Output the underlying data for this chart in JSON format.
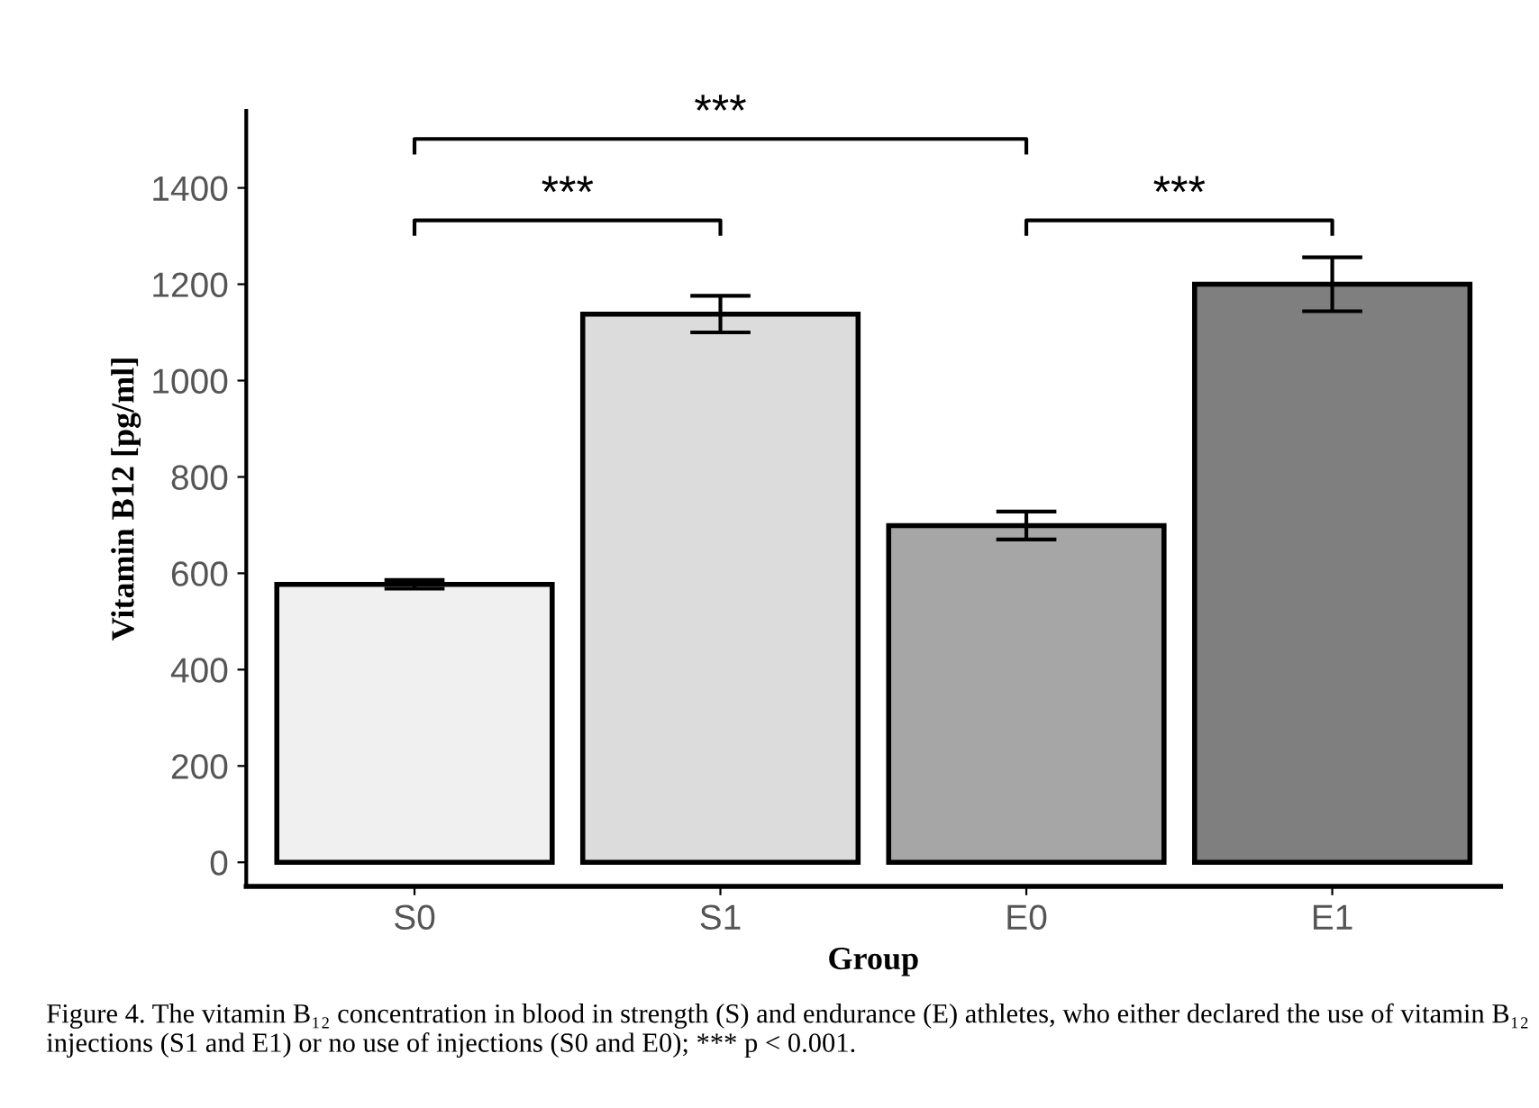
{
  "chart_data": {
    "type": "bar",
    "xlabel": "Group",
    "ylabel": "Vitamin B12 [pg/ml]",
    "categories": [
      "S0",
      "S1",
      "E0",
      "E1"
    ],
    "values": [
      577,
      1138,
      699,
      1200
    ],
    "errors": [
      9,
      38,
      29,
      56
    ],
    "colors": [
      "#f0f0f0",
      "#dcdcdc",
      "#a6a6a6",
      "#7f7f7f"
    ],
    "ylim": [
      -50,
      1560
    ],
    "yticks": [
      0,
      200,
      400,
      600,
      800,
      1000,
      1200,
      1400
    ],
    "grid": false,
    "annotations": [
      "***",
      "***",
      "***",
      "Figure 4. The vitamin B₁₂ concentration in blood in strength (S) and endurance (E) athletes, who either declared the use of vitamin B₁₂ injections (S1 and E1) or no use of injections (S0 and E0); *** p < 0.001."
    ]
  }
}
